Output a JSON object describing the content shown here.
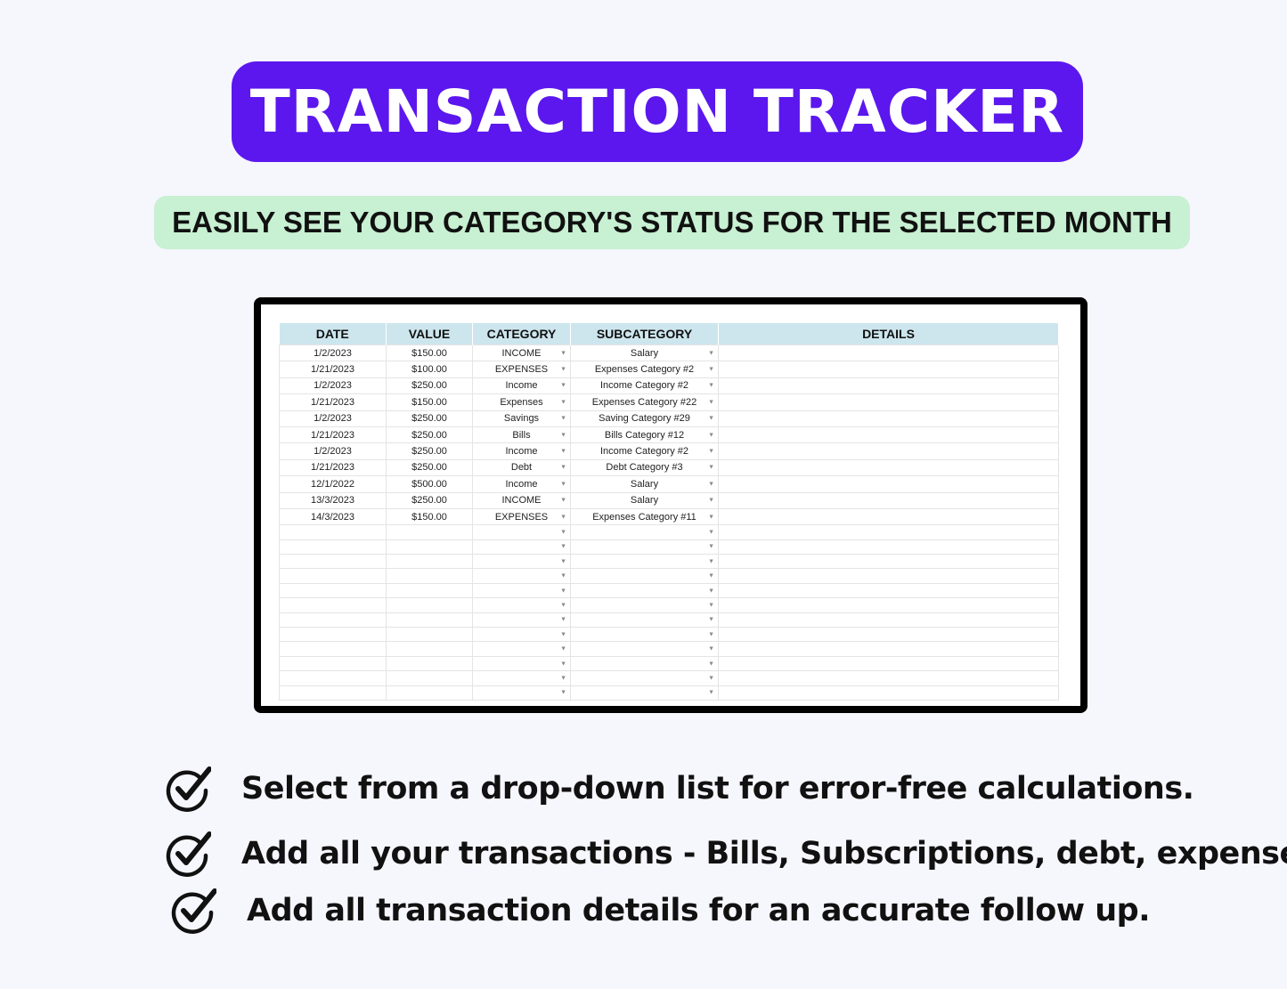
{
  "title": "TRANSACTION TRACKER",
  "subtitle": "EASILY SEE YOUR CATEGORY'S STATUS FOR THE SELECTED MONTH",
  "colors": {
    "title_bg": "#5b17ee",
    "subtitle_bg": "#c8f0d2",
    "header_bg": "#cde6ee"
  },
  "table": {
    "headers": [
      "DATE",
      "VALUE",
      "CATEGORY",
      "SUBCATEGORY",
      "DETAILS"
    ],
    "rows": [
      [
        "1/2/2023",
        "$150.00",
        "INCOME",
        "Salary",
        ""
      ],
      [
        "1/21/2023",
        "$100.00",
        "EXPENSES",
        "Expenses Category #2",
        ""
      ],
      [
        "1/2/2023",
        "$250.00",
        "Income",
        "Income Category #2",
        ""
      ],
      [
        "1/21/2023",
        "$150.00",
        "Expenses",
        "Expenses Category #22",
        ""
      ],
      [
        "1/2/2023",
        "$250.00",
        "Savings",
        "Saving Category #29",
        ""
      ],
      [
        "1/21/2023",
        "$250.00",
        "Bills",
        "Bills Category #12",
        ""
      ],
      [
        "1/2/2023",
        "$250.00",
        "Income",
        "Income Category #2",
        ""
      ],
      [
        "1/21/2023",
        "$250.00",
        "Debt",
        "Debt Category #3",
        ""
      ],
      [
        "12/1/2022",
        "$500.00",
        "Income",
        "Salary",
        ""
      ],
      [
        "13/3/2023",
        "$250.00",
        "INCOME",
        "Salary",
        ""
      ],
      [
        "14/3/2023",
        "$150.00",
        "EXPENSES",
        "Expenses Category #11",
        ""
      ]
    ],
    "empty_rows": 12
  },
  "features": [
    {
      "icon": "check-circle-icon",
      "text": "Select from a drop-down list for error-free calculations."
    },
    {
      "icon": "check-circle-icon",
      "text": "Add all your transactions - Bills, Subscriptions, debt, expenses"
    },
    {
      "icon": "check-circle-icon",
      "text": "Add all transaction details for an accurate follow up."
    }
  ]
}
